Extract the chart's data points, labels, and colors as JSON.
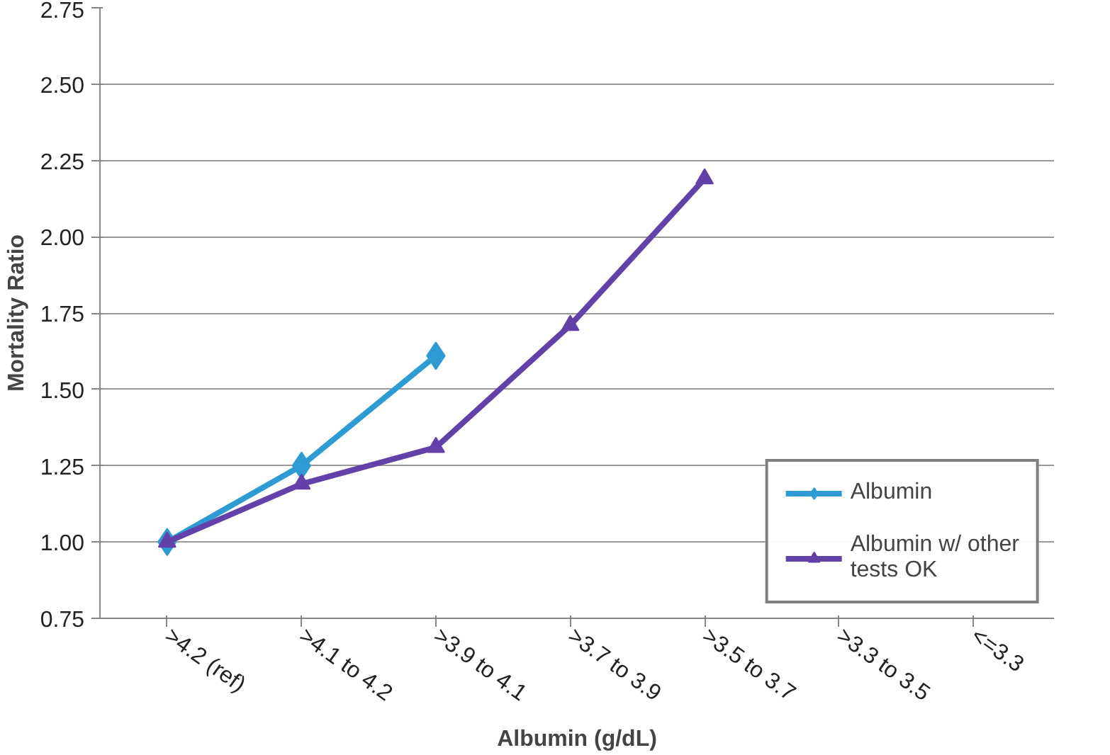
{
  "chart_data": {
    "type": "line",
    "xlabel": "Albumin (g/dL)",
    "ylabel": "Mortality Ratio",
    "categories": [
      ">4.2 (ref)",
      ">4.1 to 4.2",
      ">3.9 to 4.1",
      ">3.7 to 3.9",
      ">3.5 to 3.7",
      ">3.3 to 3.5",
      "<=3.3"
    ],
    "series": [
      {
        "name": "Albumin",
        "color": "#2f9bd3",
        "marker": "diamond",
        "values": [
          1.0,
          1.25,
          1.61,
          null,
          null,
          null,
          null
        ]
      },
      {
        "name": "Albumin w/ other tests OK",
        "color": "#6241a8",
        "marker": "triangle",
        "values": [
          1.0,
          1.19,
          1.31,
          1.71,
          2.19,
          null,
          null
        ]
      }
    ],
    "ylim": [
      0.75,
      2.75
    ],
    "yticks": [
      {
        "value": 0.75,
        "label": "0.75"
      },
      {
        "value": 1.0,
        "label": "1.00"
      },
      {
        "value": 1.25,
        "label": "1.25"
      },
      {
        "value": 1.5,
        "label": "1.50"
      },
      {
        "value": 1.75,
        "label": "1.75"
      },
      {
        "value": 2.0,
        "label": "2.00"
      },
      {
        "value": 2.25,
        "label": "2.25"
      },
      {
        "value": 2.5,
        "label": "2.50"
      },
      {
        "value": 2.75,
        "label": "2.75"
      }
    ],
    "grid": "y",
    "legend": "right",
    "line_style": "solid"
  }
}
